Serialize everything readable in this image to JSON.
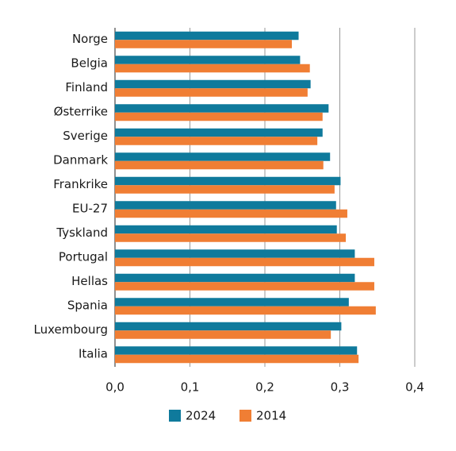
{
  "chart_data": {
    "type": "barh",
    "categories": [
      "Norge",
      "Belgia",
      "Finland",
      "Østerrike",
      "Sverige",
      "Danmark",
      "Frankrike",
      "EU-27",
      "Tyskland",
      "Portugal",
      "Hellas",
      "Spania",
      "Luxembourg",
      "Italia"
    ],
    "series": [
      {
        "name": "2024",
        "color": "#0f7a9c",
        "values": [
          0.245,
          0.247,
          0.261,
          0.285,
          0.277,
          0.287,
          0.301,
          0.295,
          0.296,
          0.32,
          0.32,
          0.312,
          0.302,
          0.323
        ]
      },
      {
        "name": "2014",
        "color": "#f07e34",
        "values": [
          0.236,
          0.26,
          0.257,
          0.277,
          0.27,
          0.278,
          0.293,
          0.31,
          0.308,
          0.346,
          0.346,
          0.348,
          0.288,
          0.325
        ]
      }
    ],
    "xlim": [
      0,
      0.4
    ],
    "xticks": [
      {
        "value": 0,
        "label": "0,0"
      },
      {
        "value": 0.1,
        "label": "0,1"
      },
      {
        "value": 0.2,
        "label": "0,2"
      },
      {
        "value": 0.3,
        "label": "0,3"
      },
      {
        "value": 0.4,
        "label": "0,4"
      }
    ],
    "grid": true,
    "legend": "bottom"
  }
}
